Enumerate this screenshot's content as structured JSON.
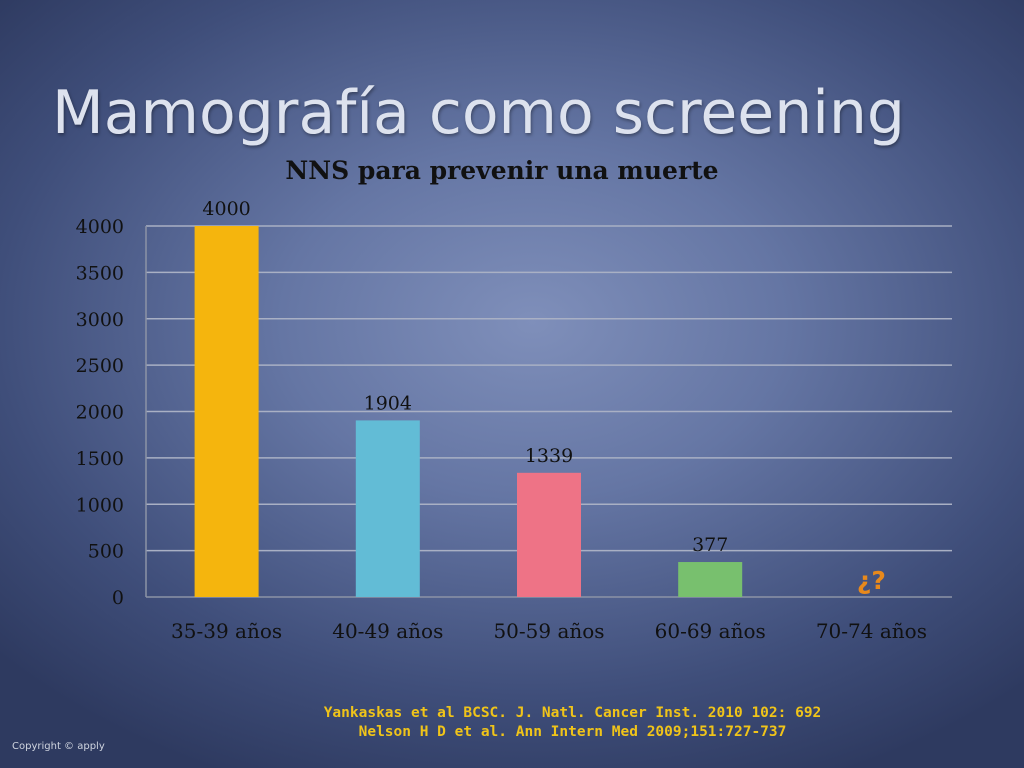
{
  "slide": {
    "title": "Mamografía como screening",
    "citations": [
      "Yankaskas et al BCSC. J. Natl. Cancer Inst. 2010 102: 692",
      "Nelson H D et al. Ann Intern Med 2009;151:727-737"
    ],
    "copyright": "Copyright © apply"
  },
  "chart_data": {
    "type": "bar",
    "title": "NNS para prevenir una muerte",
    "xlabel": "",
    "ylabel": "",
    "categories": [
      "35-39 años",
      "40-49 años",
      "50-59 años",
      "60-69 años",
      "70-74 años"
    ],
    "values": [
      4000,
      1904,
      1339,
      377,
      null
    ],
    "data_labels": [
      "4000",
      "1904",
      "1339",
      "377",
      "¿?"
    ],
    "colors": [
      "#f5b50d",
      "#62bcd6",
      "#ee7386",
      "#78c06e",
      "#e8891b"
    ],
    "ylim": [
      0,
      4000
    ],
    "yticks": [
      0,
      500,
      1000,
      1500,
      2000,
      2500,
      3000,
      3500,
      4000
    ],
    "grid": true,
    "legend": "none"
  }
}
